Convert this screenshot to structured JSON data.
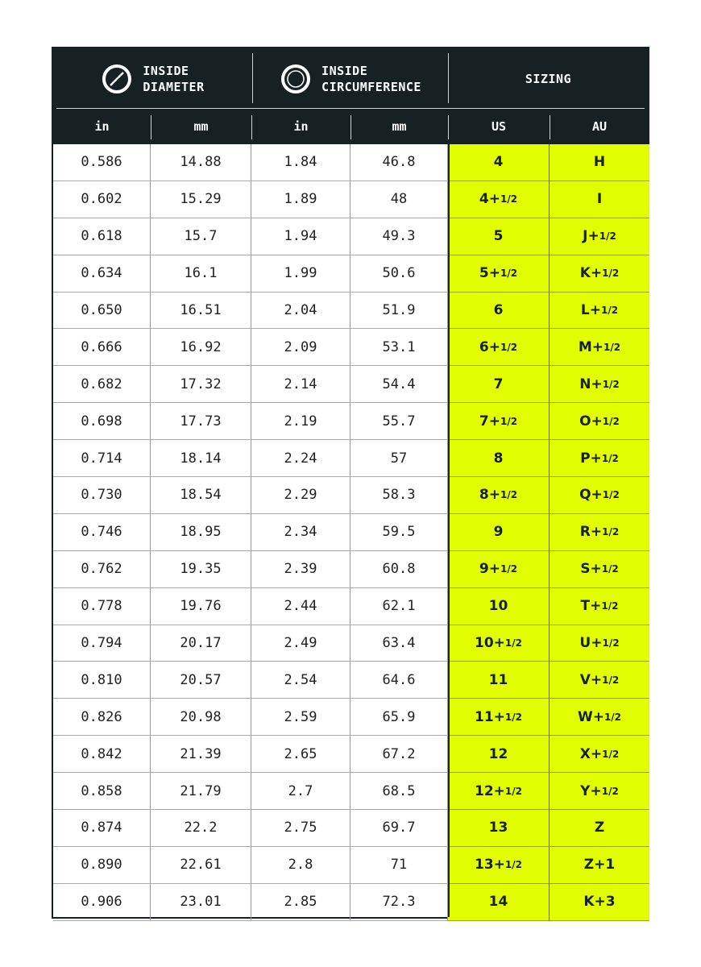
{
  "header": {
    "diameter": {
      "line1": "INSIDE",
      "line2": "DIAMETER",
      "icon": "diameter-icon"
    },
    "circumference": {
      "line1": "INSIDE",
      "line2": "CIRCUMFERENCE",
      "icon": "circumference-icon"
    },
    "sizing": "SIZING",
    "columns": [
      "in",
      "mm",
      "in",
      "mm",
      "US",
      "AU"
    ]
  },
  "colors": {
    "header_bg": "#172124",
    "highlight": "#e2ff00"
  },
  "rows": [
    {
      "d_in": "0.586",
      "d_mm": "14.88",
      "c_in": "1.84",
      "c_mm": "46.8",
      "us": "4",
      "us_frac": "",
      "au": "H",
      "au_frac": ""
    },
    {
      "d_in": "0.602",
      "d_mm": "15.29",
      "c_in": "1.89",
      "c_mm": "48",
      "us": "4+",
      "us_frac": "1/2",
      "au": "I",
      "au_frac": ""
    },
    {
      "d_in": "0.618",
      "d_mm": "15.7",
      "c_in": "1.94",
      "c_mm": "49.3",
      "us": "5",
      "us_frac": "",
      "au": "J+",
      "au_frac": "1/2"
    },
    {
      "d_in": "0.634",
      "d_mm": "16.1",
      "c_in": "1.99",
      "c_mm": "50.6",
      "us": "5+",
      "us_frac": "1/2",
      "au": "K+",
      "au_frac": "1/2"
    },
    {
      "d_in": "0.650",
      "d_mm": "16.51",
      "c_in": "2.04",
      "c_mm": "51.9",
      "us": "6",
      "us_frac": "",
      "au": "L+",
      "au_frac": "1/2"
    },
    {
      "d_in": "0.666",
      "d_mm": "16.92",
      "c_in": "2.09",
      "c_mm": "53.1",
      "us": "6+",
      "us_frac": "1/2",
      "au": "M+",
      "au_frac": "1/2"
    },
    {
      "d_in": "0.682",
      "d_mm": "17.32",
      "c_in": "2.14",
      "c_mm": "54.4",
      "us": "7",
      "us_frac": "",
      "au": "N+",
      "au_frac": "1/2"
    },
    {
      "d_in": "0.698",
      "d_mm": "17.73",
      "c_in": "2.19",
      "c_mm": "55.7",
      "us": "7+",
      "us_frac": "1/2",
      "au": "O+",
      "au_frac": "1/2"
    },
    {
      "d_in": "0.714",
      "d_mm": "18.14",
      "c_in": "2.24",
      "c_mm": "57",
      "us": "8",
      "us_frac": "",
      "au": "P+",
      "au_frac": "1/2"
    },
    {
      "d_in": "0.730",
      "d_mm": "18.54",
      "c_in": "2.29",
      "c_mm": "58.3",
      "us": "8+",
      "us_frac": "1/2",
      "au": "Q+",
      "au_frac": "1/2"
    },
    {
      "d_in": "0.746",
      "d_mm": "18.95",
      "c_in": "2.34",
      "c_mm": "59.5",
      "us": "9",
      "us_frac": "",
      "au": "R+",
      "au_frac": "1/2"
    },
    {
      "d_in": "0.762",
      "d_mm": "19.35",
      "c_in": "2.39",
      "c_mm": "60.8",
      "us": "9+",
      "us_frac": "1/2",
      "au": "S+",
      "au_frac": "1/2"
    },
    {
      "d_in": "0.778",
      "d_mm": "19.76",
      "c_in": "2.44",
      "c_mm": "62.1",
      "us": "10",
      "us_frac": "",
      "au": "T+",
      "au_frac": "1/2"
    },
    {
      "d_in": "0.794",
      "d_mm": "20.17",
      "c_in": "2.49",
      "c_mm": "63.4",
      "us": "10+",
      "us_frac": "1/2",
      "au": "U+",
      "au_frac": "1/2"
    },
    {
      "d_in": "0.810",
      "d_mm": "20.57",
      "c_in": "2.54",
      "c_mm": "64.6",
      "us": "11",
      "us_frac": "",
      "au": "V+",
      "au_frac": "1/2"
    },
    {
      "d_in": "0.826",
      "d_mm": "20.98",
      "c_in": "2.59",
      "c_mm": "65.9",
      "us": "11+",
      "us_frac": "1/2",
      "au": "W+",
      "au_frac": "1/2"
    },
    {
      "d_in": "0.842",
      "d_mm": "21.39",
      "c_in": "2.65",
      "c_mm": "67.2",
      "us": "12",
      "us_frac": "",
      "au": "X+",
      "au_frac": "1/2"
    },
    {
      "d_in": "0.858",
      "d_mm": "21.79",
      "c_in": "2.7",
      "c_mm": "68.5",
      "us": "12+",
      "us_frac": "1/2",
      "au": "Y+",
      "au_frac": "1/2"
    },
    {
      "d_in": "0.874",
      "d_mm": "22.2",
      "c_in": "2.75",
      "c_mm": "69.7",
      "us": "13",
      "us_frac": "",
      "au": "Z",
      "au_frac": ""
    },
    {
      "d_in": "0.890",
      "d_mm": "22.61",
      "c_in": "2.8",
      "c_mm": "71",
      "us": "13+",
      "us_frac": "1/2",
      "au": "Z+1",
      "au_frac": ""
    },
    {
      "d_in": "0.906",
      "d_mm": "23.01",
      "c_in": "2.85",
      "c_mm": "72.3",
      "us": "14",
      "us_frac": "",
      "au": "K+3",
      "au_frac": ""
    }
  ]
}
